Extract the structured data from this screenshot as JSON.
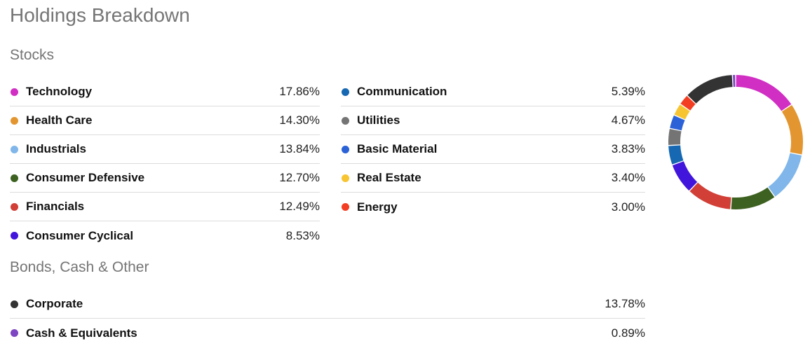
{
  "title": "Holdings Breakdown",
  "sections": {
    "stocks_title": "Stocks",
    "bonds_title": "Bonds, Cash & Other"
  },
  "stocks_left": [
    {
      "label": "Technology",
      "value": "17.86%",
      "color": "#d12ec4"
    },
    {
      "label": "Health Care",
      "value": "14.30%",
      "color": "#e3962f"
    },
    {
      "label": "Industrials",
      "value": "13.84%",
      "color": "#80b6ea"
    },
    {
      "label": "Consumer Defensive",
      "value": "12.70%",
      "color": "#3d6121"
    },
    {
      "label": "Financials",
      "value": "12.49%",
      "color": "#d13f37"
    },
    {
      "label": "Consumer Cyclical",
      "value": "8.53%",
      "color": "#4215dc"
    }
  ],
  "stocks_right": [
    {
      "label": "Communication",
      "value": "5.39%",
      "color": "#1668b2"
    },
    {
      "label": "Utilities",
      "value": "4.67%",
      "color": "#747474"
    },
    {
      "label": "Basic Material",
      "value": "3.83%",
      "color": "#2b62d8"
    },
    {
      "label": "Real Estate",
      "value": "3.40%",
      "color": "#f7c531"
    },
    {
      "label": "Energy",
      "value": "3.00%",
      "color": "#f33e23"
    }
  ],
  "bonds": [
    {
      "label": "Corporate",
      "value": "13.78%",
      "color": "#333333"
    },
    {
      "label": "Cash & Equivalents",
      "value": "0.89%",
      "color": "#7d45c2"
    }
  ],
  "chart_data": {
    "type": "pie",
    "variant": "donut",
    "categories": [
      "Technology",
      "Health Care",
      "Industrials",
      "Consumer Defensive",
      "Financials",
      "Consumer Cyclical",
      "Communication",
      "Utilities",
      "Basic Material",
      "Real Estate",
      "Energy",
      "Corporate",
      "Cash & Equivalents"
    ],
    "values": [
      17.86,
      14.3,
      13.84,
      12.7,
      12.49,
      8.53,
      5.39,
      4.67,
      3.83,
      3.4,
      3.0,
      13.78,
      0.89
    ],
    "colors": [
      "#d12ec4",
      "#e3962f",
      "#80b6ea",
      "#3d6121",
      "#d13f37",
      "#4215dc",
      "#1668b2",
      "#747474",
      "#2b62d8",
      "#f7c531",
      "#f33e23",
      "#333333",
      "#7d45c2"
    ],
    "title": "",
    "legend": "left"
  }
}
